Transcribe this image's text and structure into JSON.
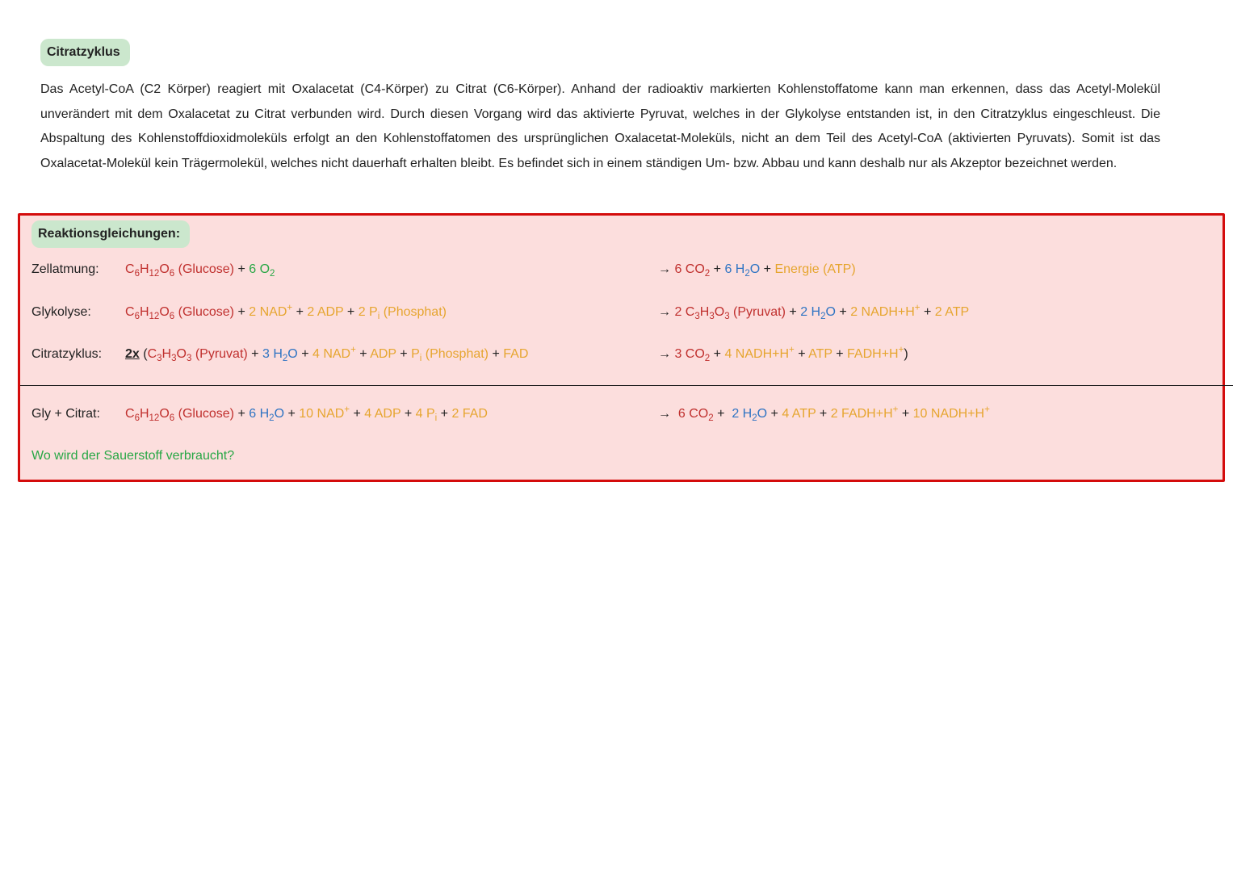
{
  "title": "Citratzyklus",
  "paragraph": "Das Acetyl-CoA (C2 Körper) reagiert mit Oxalacetat (C4-Körper) zu Citrat (C6-Körper). Anhand der radioaktiv markierten Kohlenstoffatome kann man erkennen, dass das Acetyl-Molekül unverändert mit dem Oxalacetat zu Citrat verbunden wird. Durch diesen Vorgang wird das aktivierte Pyruvat, welches in der Glykolyse entstanden ist, in den Citratzyklus eingeschleust. Die Abspaltung des Kohlenstoffdioxidmoleküls erfolgt an den Kohlenstoffatomen des ursprünglichen Oxalacetat-Moleküls, nicht an dem Teil des Acetyl-CoA (aktivierten Pyruvats). Somit ist das Oxalacetat-Molekül kein Trägermolekül, welches nicht dauerhaft erhalten bleibt. Es befindet sich in einem ständigen Um- bzw. Abbau und kann deshalb nur als Akzeptor bezeichnet werden.",
  "box_title": "Reaktionsgleichungen:",
  "rows": {
    "zellatmung": {
      "label": "Zellatmung:",
      "lhs": "<span class='c-red'>C<sub>6</sub>H<sub>12</sub>O<sub>6</sub> (Glucose)</span> <span class='c-black'>+</span> <span class='c-green'>6 O<sub>2</sub></span>",
      "rhs": "<span class='c-black arrow'>&#8594;</span> <span class='c-red'>6 CO<sub>2</sub></span> <span class='c-black'>+</span> <span class='c-blue'>6 H<sub>2</sub>O</span> <span class='c-black'>+</span> <span class='c-orange'>Energie (ATP)</span>"
    },
    "glykolyse": {
      "label": "Glykolyse:",
      "lhs": "<span class='c-red'>C<sub>6</sub>H<sub>12</sub>O<sub>6</sub> (Glucose)</span> <span class='c-black'>+</span> <span class='c-orange'>2 NAD<sup>+</sup></span> <span class='c-black'>+</span> <span class='c-orange'>2 ADP</span> <span class='c-black'>+</span> <span class='c-orange'>2 P<sub>i</sub> (Phosphat)</span>",
      "rhs": "<span class='c-black arrow'>&#8594;</span> <span class='c-red'>2 C<sub>3</sub>H<sub>3</sub>O<sub>3</sub> (Pyruvat)</span> <span class='c-black'>+</span> <span class='c-blue'>2 H<sub>2</sub>O</span> <span class='c-black'>+</span> <span class='c-orange'>2 NADH+H<sup>+</sup></span> <span class='c-black'>+</span> <span class='c-orange'>2 ATP</span>"
    },
    "citratzyklus": {
      "label": "Citratzyklus:",
      "lhs": "<span class='twox'>2x</span> <span class='c-black'>(</span><span class='c-red'>C<sub>3</sub>H<sub>3</sub>O<sub>3</sub> (Pyruvat)</span> <span class='c-black'>+</span> <span class='c-blue'>3 H<sub>2</sub>O</span> <span class='c-black'>+</span> <span class='c-orange'>4 NAD<sup>+</sup></span> <span class='c-black'>+</span> <span class='c-orange'>ADP</span> <span class='c-black'>+</span> <span class='c-orange'>P<sub>i</sub> (Phosphat)</span> <span class='c-black'>+</span> <span class='c-orange'>FAD</span>",
      "rhs": "<span class='c-black arrow'>&#8594;</span> <span class='c-red'>3 CO<sub>2</sub></span> <span class='c-black'>+</span> <span class='c-orange'>4 NADH+H<sup>+</sup></span> <span class='c-black'>+</span> <span class='c-orange'>ATP</span> <span class='c-black'>+</span> <span class='c-orange'>FADH+H<sup>+</sup></span><span class='c-black'>)</span>"
    },
    "gly_citrat": {
      "label": "Gly + Citrat:",
      "lhs": "<span class='c-red'>C<sub>6</sub>H<sub>12</sub>O<sub>6</sub> (Glucose)</span> <span class='c-black'>+</span> <span class='c-blue'>6 H<sub>2</sub>O</span> <span class='c-black'>+</span> <span class='c-orange'>10 NAD<sup>+</sup></span> <span class='c-black'>+</span> <span class='c-orange'>4 ADP</span> <span class='c-black'>+</span> <span class='c-orange'>4 P<sub>i</sub></span> <span class='c-black'>+</span> <span class='c-orange'>2 FAD</span>",
      "rhs": "<span class='c-black arrow'>&#8594;</span>&nbsp; <span class='c-red'>6 CO<sub>2</sub></span> <span class='c-black'>+</span>&nbsp; <span class='c-blue'>2 H<sub>2</sub>O</span> <span class='c-black'>+</span> <span class='c-orange'>4 ATP</span> <span class='c-black'>+</span> <span class='c-orange'>2 FADH+H<sup>+</sup></span> <span class='c-black'>+</span> <span class='c-orange'>10 NADH+H<sup>+</sup></span>"
    }
  },
  "question": "Wo wird der Sauerstoff verbraucht?",
  "colors": {
    "highlight_bg": "#cbe7cd",
    "box_border": "#d40c0c",
    "box_bg": "#fcdedd",
    "red": "#c0302e",
    "green": "#28a745",
    "orange": "#e6a52f",
    "blue": "#2f74c3",
    "black": "#222222"
  },
  "fontsize_body_pt": 12,
  "line_height": 1.9
}
